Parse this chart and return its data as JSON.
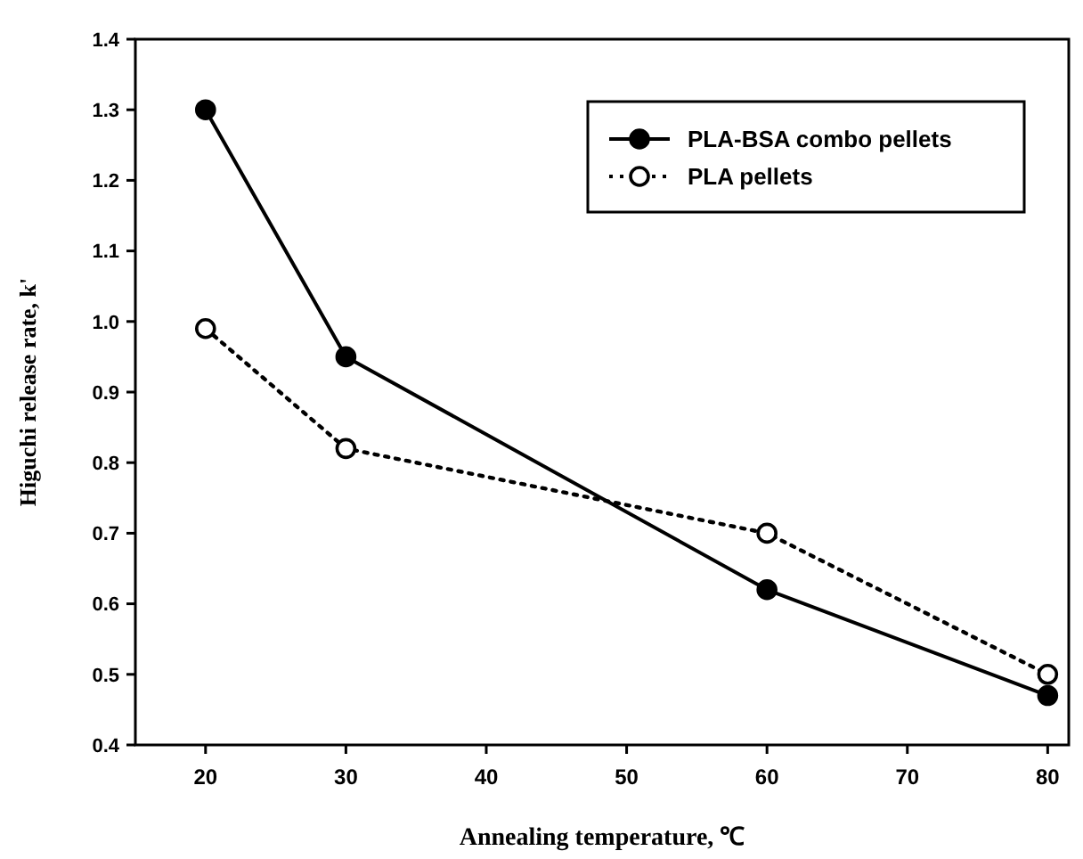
{
  "chart_data": {
    "type": "line",
    "xlabel": "Annealing temperature, ℃",
    "ylabel": "Higuchi release rate, k'",
    "x": [
      20,
      30,
      60,
      80
    ],
    "series": [
      {
        "name": "PLA-BSA combo pellets",
        "color": "#000000",
        "values": [
          1.3,
          0.95,
          0.62,
          0.47
        ],
        "marker": "circle",
        "line_style": "solid"
      },
      {
        "name": "PLA pellets",
        "color": "#000000",
        "values": [
          0.99,
          0.82,
          0.7,
          0.5
        ],
        "marker": "circle",
        "line_style": "dotted"
      }
    ],
    "xlim": [
      15,
      81.5
    ],
    "xticks": [
      20,
      30,
      40,
      50,
      60,
      70,
      80
    ],
    "ylim": [
      0.4,
      1.4
    ],
    "yticks": [
      {
        "value": 0.4,
        "label": "0.4"
      },
      {
        "value": 0.5,
        "label": "0.5"
      },
      {
        "value": 0.6,
        "label": "0.6"
      },
      {
        "value": 0.7,
        "label": "0.7"
      },
      {
        "value": 0.8,
        "label": "0.8"
      },
      {
        "value": 0.9,
        "label": "0.9"
      },
      {
        "value": 1.0,
        "label": "1.0"
      },
      {
        "value": 1.1,
        "label": "1.1"
      },
      {
        "value": 1.2,
        "label": "1.2"
      },
      {
        "value": 1.3,
        "label": "1.3"
      },
      {
        "value": 1.4,
        "label": "1.4"
      }
    ],
    "legend": "top right",
    "grid": false
  }
}
